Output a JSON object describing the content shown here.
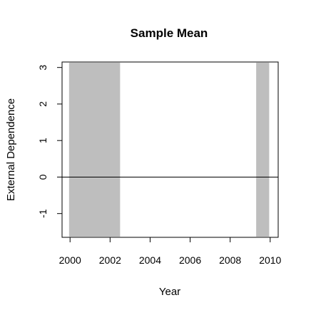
{
  "chart_data": {
    "type": "line",
    "title": "Sample Mean",
    "xlabel": "Year",
    "ylabel": "External Dependence",
    "xlim": [
      1999.6,
      2010.4
    ],
    "ylim": [
      -1.65,
      3.15
    ],
    "x_ticks": [
      2000,
      2002,
      2004,
      2006,
      2008,
      2010
    ],
    "y_ticks": [
      -1,
      0,
      1,
      2,
      3
    ],
    "x_tick_labels": [
      "2000",
      "2002",
      "2004",
      "2006",
      "2008",
      "2010"
    ],
    "y_tick_labels": [
      "-1",
      "0",
      "1",
      "2",
      "3"
    ],
    "shaded_periods": [
      {
        "start": 1999.95,
        "end": 2002.5
      },
      {
        "start": 2009.3,
        "end": 2009.95
      }
    ],
    "reference_line": {
      "y": 0
    },
    "shade_color": "#bebebe",
    "grid": false,
    "legend": "none"
  }
}
